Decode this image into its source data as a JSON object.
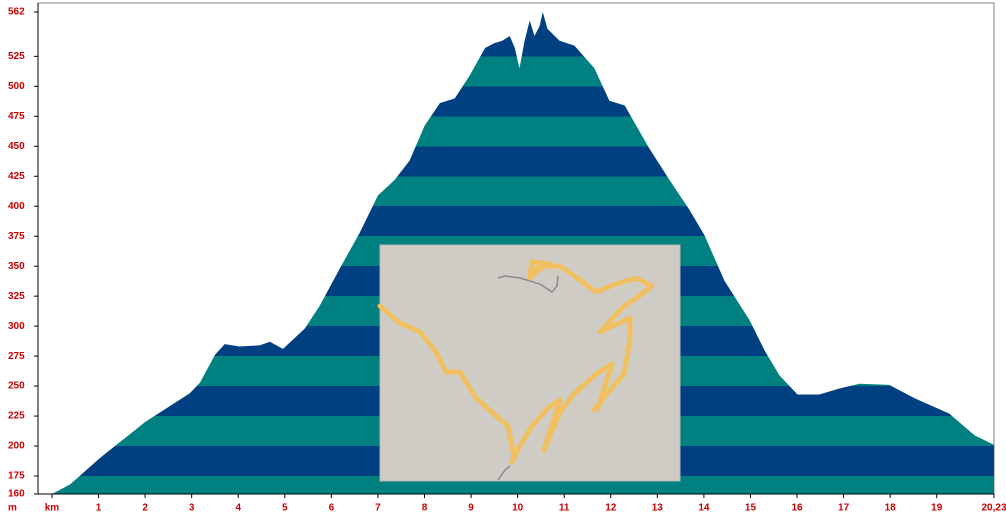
{
  "chart_data": {
    "type": "area",
    "x": [
      0,
      0.39,
      1.03,
      2.0,
      2.96,
      3.18,
      3.5,
      3.71,
      4.03,
      4.46,
      4.68,
      4.96,
      5.21,
      5.43,
      5.75,
      6.18,
      6.61,
      7.0,
      7.36,
      7.68,
      8.0,
      8.33,
      8.65,
      8.97,
      9.3,
      9.5,
      9.67,
      9.83,
      9.94,
      10.04,
      10.15,
      10.26,
      10.36,
      10.47,
      10.54,
      10.64,
      10.9,
      11.22,
      11.65,
      11.97,
      12.3,
      12.83,
      13.26,
      13.69,
      14.01,
      14.44,
      14.98,
      15.3,
      15.62,
      16.01,
      16.48,
      16.91,
      17.34,
      17.98,
      18.52,
      19.27,
      19.81,
      20.23
    ],
    "y": [
      160,
      168,
      190,
      220,
      244,
      253,
      276,
      285,
      283,
      284,
      287,
      281,
      290,
      298,
      317,
      348,
      378,
      409,
      422,
      438,
      467,
      486,
      490,
      509,
      532,
      536,
      538,
      542,
      532,
      515,
      538,
      555,
      542,
      550,
      562,
      548,
      538,
      534,
      515,
      488,
      484,
      448,
      422,
      397,
      376,
      338,
      305,
      280,
      259,
      243,
      243,
      248,
      252,
      251,
      240,
      227,
      209,
      201
    ],
    "y_label": "m",
    "xlim": [
      -0.3,
      20.23
    ],
    "ylim": [
      160,
      562
    ],
    "xticks": [
      {
        "value": 0,
        "label": "km"
      },
      1,
      2,
      3,
      4,
      5,
      6,
      7,
      8,
      9,
      10,
      11,
      12,
      13,
      14,
      15,
      16,
      17,
      18,
      19,
      {
        "value": 20.23,
        "label": "20,23"
      }
    ],
    "yticks": [
      160,
      175,
      200,
      225,
      250,
      275,
      300,
      325,
      350,
      375,
      400,
      425,
      450,
      475,
      500,
      525,
      562
    ],
    "band_colors": [
      "#008080",
      "#004080"
    ]
  }
}
